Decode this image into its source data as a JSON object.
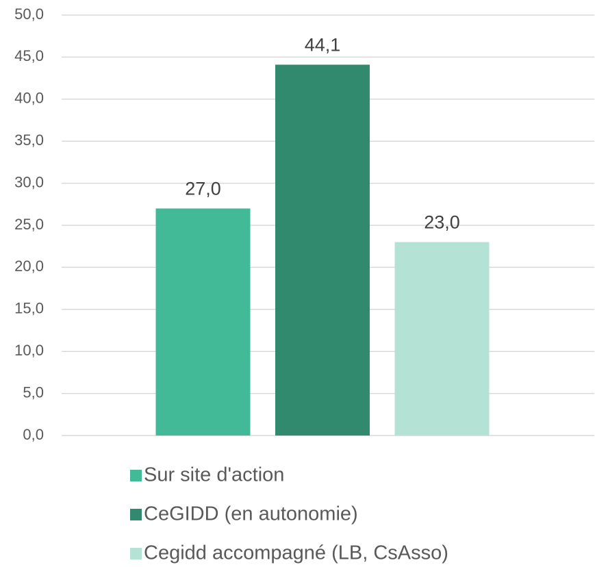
{
  "chart_data": {
    "type": "bar",
    "categories": [
      null
    ],
    "series": [
      {
        "name": "Sur site d'action",
        "color": "#43BA97",
        "values": [
          27.0
        ],
        "value_labels": [
          "27,0"
        ]
      },
      {
        "name": "CeGIDD (en autonomie)",
        "color": "#318A6E",
        "values": [
          44.1
        ],
        "value_labels": [
          "44,1"
        ]
      },
      {
        "name": "Cegidd accompagné (LB, CsAsso)",
        "color": "#B4E3D5",
        "values": [
          23.0
        ],
        "value_labels": [
          "23,0"
        ]
      }
    ],
    "ylim": [
      0,
      50
    ],
    "yticks": [
      {
        "value": 0,
        "label": "0,0"
      },
      {
        "value": 5,
        "label": "5,0"
      },
      {
        "value": 10,
        "label": "10,0"
      },
      {
        "value": 15,
        "label": "15,0"
      },
      {
        "value": 20,
        "label": "20,0"
      },
      {
        "value": 25,
        "label": "25,0"
      },
      {
        "value": 30,
        "label": "30,0"
      },
      {
        "value": 35,
        "label": "35,0"
      },
      {
        "value": 40,
        "label": "40,0"
      },
      {
        "value": 45,
        "label": "45,0"
      },
      {
        "value": 50,
        "label": "50,0"
      }
    ],
    "grid": true,
    "legend": "bottom"
  }
}
